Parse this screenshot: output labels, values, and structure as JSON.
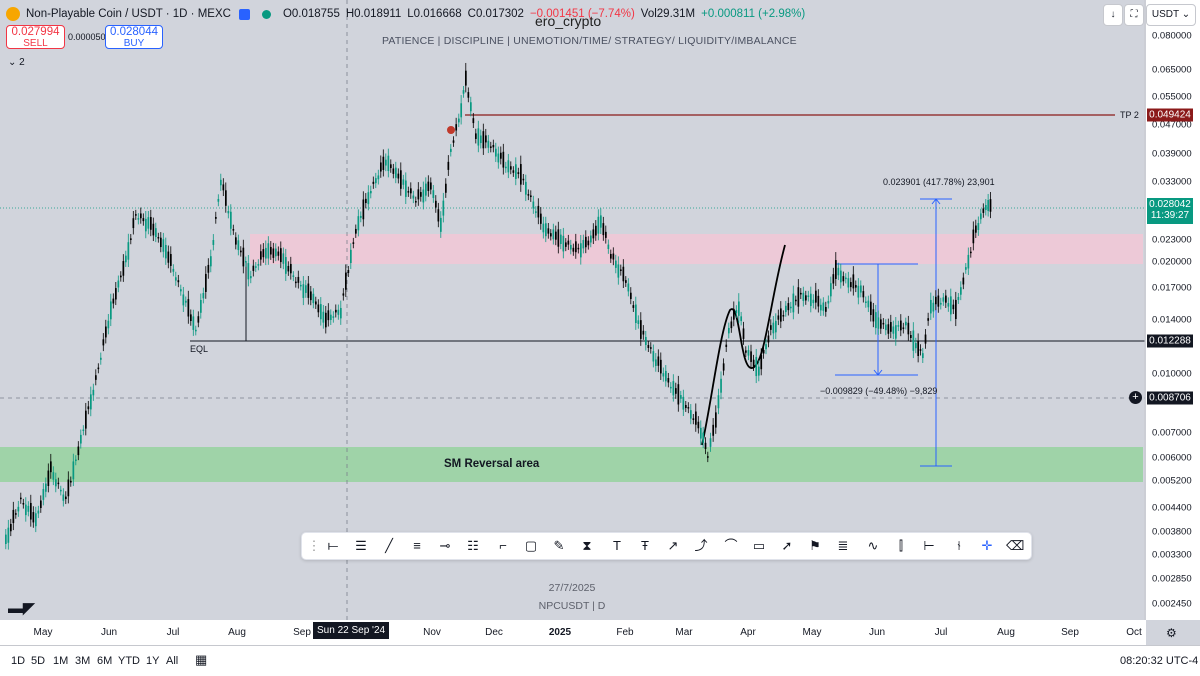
{
  "legend": {
    "title": "Non-Playable Coin / USDT · 1D · MEXC",
    "open": "O0.018755",
    "high": "H0.018911",
    "low": "L0.016668",
    "close": "C0.017302",
    "change": "−0.001451 (−7.74%)",
    "volume": "Vol29.31M",
    "vol_change": "+0.000811 (+2.98%)",
    "indicators_count": "2"
  },
  "trade": {
    "sell_price": "0.027994",
    "sell_label": "SELL",
    "spread": "0.000050",
    "buy_price": "0.028044",
    "buy_label": "BUY"
  },
  "watermark": "ero_crypto",
  "tagline": "PATIENCE   |   DISCIPLINE   |   UNEMOTION/TIME/ STRATEGY/ LIQUIDITY/IMBALANCE",
  "annotations": {
    "eql": "EQL",
    "sm_reversal": "SM Reversal area",
    "tp2": "TP 2",
    "measure_up": "0.023901 (417.78%) 23,901",
    "measure_down": "−0.009829 (−49.48%) −9,829"
  },
  "center_info": {
    "date": "27/7/2025",
    "symbol": "NPCUSDT  |  D"
  },
  "price_axis": {
    "ticks": [
      "0.080000",
      "0.065000",
      "0.055000",
      "0.047000",
      "0.039000",
      "0.033000",
      "0.023000",
      "0.020000",
      "0.017000",
      "0.014000",
      "0.010000",
      "0.007000",
      "0.006000",
      "0.005200",
      "0.004400",
      "0.003800",
      "0.003300",
      "0.002850",
      "0.002450"
    ],
    "tp_label": "0.049424",
    "last_price": "0.028042",
    "countdown": "11:39:27",
    "eql_label": "0.012288",
    "crosshair_label": "0.008706",
    "currency": "USDT"
  },
  "time_axis": {
    "ticks": [
      "May",
      "Jun",
      "Jul",
      "Aug",
      "Sep",
      "Nov",
      "Dec",
      "2025",
      "Feb",
      "Mar",
      "Apr",
      "May",
      "Jun",
      "Jul",
      "Aug",
      "Sep",
      "Oct"
    ],
    "crosshair_date": "Sun 22 Sep '24"
  },
  "ranges": [
    "1D",
    "5D",
    "1M",
    "3M",
    "6M",
    "YTD",
    "1Y",
    "All"
  ],
  "clock": "08:20:32 UTC-4",
  "colors": {
    "up": "#089981",
    "down": "#000000",
    "tp": "#8b1a1a",
    "zone_pink": "#f0c8d6",
    "zone_green": "#9fd3a8",
    "measure": "#2962ff"
  },
  "chart_data": {
    "type": "candlestick",
    "symbol": "NPCUSDT",
    "interval": "1D",
    "scale": "log",
    "x": [
      "May",
      "Jun",
      "Jul",
      "Aug",
      "Sep",
      "Oct",
      "Nov",
      "Dec",
      "2025",
      "Feb",
      "Mar",
      "Apr",
      "May",
      "Jun",
      "Jul",
      "Aug"
    ],
    "close_approx": [
      0.0035,
      0.0085,
      0.015,
      0.018,
      0.016,
      0.03,
      0.038,
      0.038,
      0.03,
      0.02,
      0.011,
      0.0085,
      0.018,
      0.0145,
      0.015,
      0.028
    ],
    "levels": {
      "tp2": 0.049424,
      "eql": 0.012288,
      "last": 0.028042
    },
    "ylim": [
      0.00245,
      0.08
    ]
  }
}
